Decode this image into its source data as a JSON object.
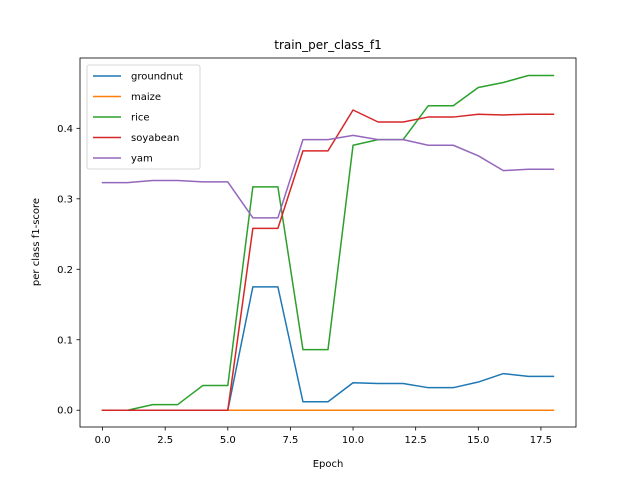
{
  "chart_data": {
    "type": "line",
    "title": "train_per_class_f1",
    "xlabel": "Epoch",
    "ylabel": "per class f1-score",
    "xlim": [
      -0.9,
      18.9
    ],
    "ylim": [
      -0.0238,
      0.4998
    ],
    "xticks": [
      0,
      2.5,
      5,
      7.5,
      10,
      12.5,
      15,
      17.5
    ],
    "xtick_labels": [
      "0.0",
      "2.5",
      "5.0",
      "7.5",
      "10.0",
      "12.5",
      "15.0",
      "17.5"
    ],
    "yticks": [
      0,
      0.1,
      0.2,
      0.3,
      0.4
    ],
    "ytick_labels": [
      "0.0",
      "0.1",
      "0.2",
      "0.3",
      "0.4"
    ],
    "grid": false,
    "legend_position": "top-left",
    "x": [
      0,
      1,
      2,
      3,
      4,
      5,
      6,
      7,
      8,
      9,
      10,
      11,
      12,
      13,
      14,
      15,
      16,
      17,
      18
    ],
    "series": [
      {
        "name": "groundnut",
        "color": "#1f77b4",
        "values": [
          0,
          0,
          0,
          0,
          0,
          0,
          0.175,
          0.175,
          0.012,
          0.012,
          0.039,
          0.038,
          0.038,
          0.032,
          0.032,
          0.04,
          0.052,
          0.048,
          0.048
        ]
      },
      {
        "name": "maize",
        "color": "#ff7f0e",
        "values": [
          0,
          0,
          0,
          0,
          0,
          0,
          0,
          0,
          0,
          0,
          0,
          0,
          0,
          0,
          0,
          0,
          0,
          0,
          0
        ]
      },
      {
        "name": "rice",
        "color": "#2ca02c",
        "values": [
          0,
          0,
          0.008,
          0.008,
          0.035,
          0.035,
          0.317,
          0.317,
          0.086,
          0.086,
          0.376,
          0.384,
          0.384,
          0.432,
          0.432,
          0.458,
          0.465,
          0.475,
          0.475
        ]
      },
      {
        "name": "soyabean",
        "color": "#d62728",
        "values": [
          0,
          0,
          0,
          0,
          0,
          0,
          0.258,
          0.258,
          0.368,
          0.368,
          0.426,
          0.409,
          0.409,
          0.416,
          0.416,
          0.42,
          0.419,
          0.42,
          0.42
        ]
      },
      {
        "name": "yam",
        "color": "#9467bd",
        "values": [
          0.323,
          0.323,
          0.326,
          0.326,
          0.324,
          0.324,
          0.273,
          0.273,
          0.384,
          0.384,
          0.39,
          0.384,
          0.384,
          0.376,
          0.376,
          0.361,
          0.34,
          0.342,
          0.342
        ]
      }
    ]
  }
}
